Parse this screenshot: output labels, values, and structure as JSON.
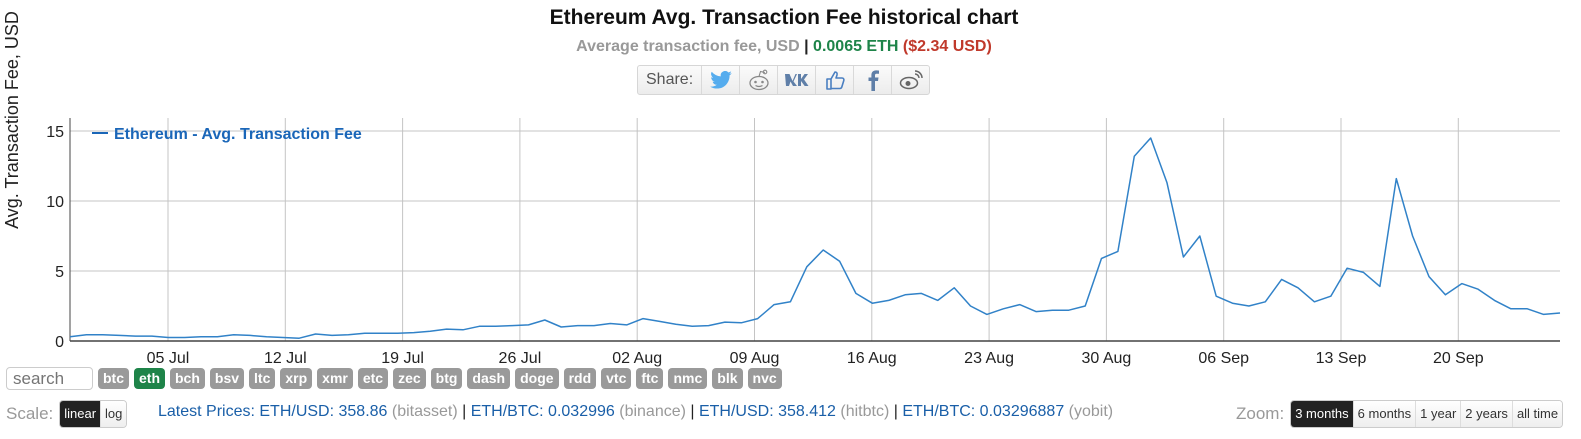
{
  "header": {
    "title": "Ethereum Avg. Transaction Fee historical chart",
    "subtitle_label": "Average transaction fee, USD",
    "subtitle_sep": "|",
    "subtitle_eth": "0.0065 ETH",
    "subtitle_usd": "($2.34 USD)"
  },
  "share": {
    "label": "Share:",
    "buttons": [
      "twitter-icon",
      "reddit-icon",
      "vk-icon",
      "like-icon",
      "facebook-icon",
      "weibo-icon"
    ]
  },
  "colors": {
    "line": "#3182c8",
    "legend": "#1a66b8",
    "eth_green": "#1e8449",
    "usd_red": "#c0392b",
    "coin_gray": "#9a9a9a",
    "grid": "#c4c4c4"
  },
  "chart_data": {
    "type": "line",
    "title": "Ethereum Avg. Transaction Fee historical chart",
    "xlabel": "",
    "ylabel": "Avg. Transaction Fee, USD",
    "legend": [
      "Ethereum - Avg. Transaction Fee"
    ],
    "legend_position": "top-left",
    "grid": true,
    "ylim": [
      0,
      16
    ],
    "yticks": [
      0,
      5,
      10,
      15
    ],
    "xtick_labels": [
      "05 Jul",
      "12 Jul",
      "19 Jul",
      "26 Jul",
      "02 Aug",
      "09 Aug",
      "16 Aug",
      "23 Aug",
      "30 Aug",
      "06 Sep",
      "13 Sep",
      "20 Sep"
    ],
    "x_start": "29 Jun",
    "x_end": "27 Sep",
    "series": [
      {
        "name": "Ethereum - Avg. Transaction Fee",
        "values": [
          0.3,
          0.45,
          0.45,
          0.4,
          0.35,
          0.35,
          0.25,
          0.25,
          0.3,
          0.3,
          0.45,
          0.4,
          0.3,
          0.25,
          0.2,
          0.5,
          0.4,
          0.45,
          0.55,
          0.55,
          0.55,
          0.6,
          0.7,
          0.85,
          0.8,
          1.05,
          1.05,
          1.1,
          1.15,
          1.5,
          1.0,
          1.1,
          1.1,
          1.25,
          1.15,
          1.6,
          1.4,
          1.2,
          1.05,
          1.1,
          1.35,
          1.3,
          1.6,
          2.6,
          2.8,
          5.3,
          6.5,
          5.7,
          3.4,
          2.7,
          2.9,
          3.3,
          3.4,
          2.9,
          3.8,
          2.5,
          1.9,
          2.3,
          2.6,
          2.1,
          2.2,
          2.2,
          2.5,
          5.9,
          6.4,
          13.2,
          14.5,
          11.3,
          6.0,
          7.5,
          3.2,
          2.7,
          2.5,
          2.8,
          4.4,
          3.8,
          2.8,
          3.2,
          5.2,
          4.9,
          3.9,
          11.6,
          7.5,
          4.6,
          3.3,
          4.1,
          3.7,
          2.9,
          2.3,
          2.3,
          1.9,
          2.0
        ]
      }
    ]
  },
  "controls": {
    "search_placeholder": "search",
    "coins": [
      "btc",
      "eth",
      "bch",
      "bsv",
      "ltc",
      "xrp",
      "xmr",
      "etc",
      "zec",
      "btg",
      "dash",
      "doge",
      "rdd",
      "vtc",
      "ftc",
      "nmc",
      "blk",
      "nvc"
    ],
    "active_coin": "eth"
  },
  "scale": {
    "label": "Scale:",
    "options": [
      "linear",
      "log"
    ],
    "selected": "linear"
  },
  "prices": {
    "label": "Latest Prices:",
    "items": [
      {
        "pair": "ETH/USD: 358.86",
        "source": "(bitasset)"
      },
      {
        "pair": "ETH/BTC: 0.032996",
        "source": "(binance)"
      },
      {
        "pair": "ETH/USD: 358.412",
        "source": "(hitbtc)"
      },
      {
        "pair": "ETH/BTC: 0.03296887",
        "source": "(yobit)"
      }
    ],
    "separator": "|"
  },
  "zoom": {
    "label": "Zoom:",
    "options": [
      "3 months",
      "6 months",
      "1 year",
      "2 years",
      "all time"
    ],
    "selected": "3 months"
  }
}
